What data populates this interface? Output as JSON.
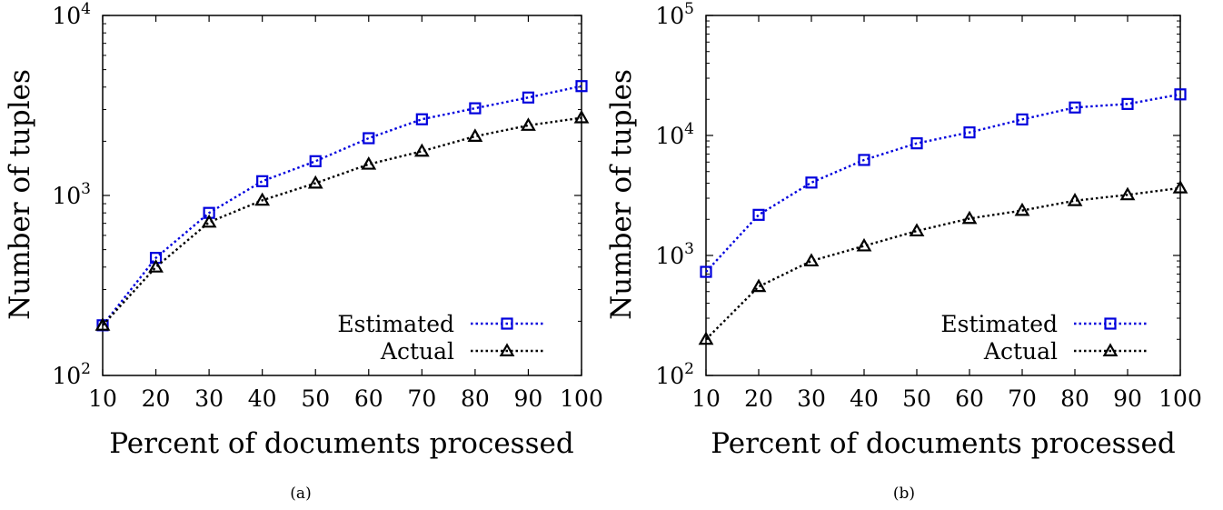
{
  "chart_data": [
    {
      "type": "line",
      "panel_label": "(a)",
      "xlabel": "Percent of documents processed",
      "ylabel": "Number of tuples",
      "x": [
        10,
        20,
        30,
        40,
        50,
        60,
        70,
        80,
        90,
        100
      ],
      "xticks": [
        "10",
        "20",
        "30",
        "40",
        "50",
        "60",
        "70",
        "80",
        "90",
        "100"
      ],
      "xlim": [
        10,
        100
      ],
      "yscale": "log",
      "ylim": [
        100,
        10000
      ],
      "yticks": [
        {
          "value": 100,
          "base": "10",
          "exp": "2"
        },
        {
          "value": 1000,
          "base": "10",
          "exp": "3"
        },
        {
          "value": 10000,
          "base": "10",
          "exp": "4"
        }
      ],
      "grid": false,
      "legend_position": "bottom-right",
      "series": [
        {
          "name": "Estimated",
          "color": "#0000dd",
          "marker": "square",
          "line_style": "dotted",
          "values": [
            190,
            450,
            800,
            1200,
            1550,
            2080,
            2650,
            3050,
            3500,
            4050
          ]
        },
        {
          "name": "Actual",
          "color": "#000000",
          "marker": "triangle",
          "line_style": "dotted",
          "values": [
            190,
            400,
            710,
            940,
            1170,
            1490,
            1760,
            2130,
            2450,
            2700
          ]
        }
      ]
    },
    {
      "type": "line",
      "panel_label": "(b)",
      "xlabel": "Percent of documents processed",
      "ylabel": "Number of tuples",
      "x": [
        10,
        20,
        30,
        40,
        50,
        60,
        70,
        80,
        90,
        100
      ],
      "xticks": [
        "10",
        "20",
        "30",
        "40",
        "50",
        "60",
        "70",
        "80",
        "90",
        "100"
      ],
      "xlim": [
        10,
        100
      ],
      "yscale": "log",
      "ylim": [
        100,
        100000
      ],
      "yticks": [
        {
          "value": 100,
          "base": "10",
          "exp": "2"
        },
        {
          "value": 1000,
          "base": "10",
          "exp": "3"
        },
        {
          "value": 10000,
          "base": "10",
          "exp": "4"
        },
        {
          "value": 100000,
          "base": "10",
          "exp": "5"
        }
      ],
      "grid": false,
      "legend_position": "bottom-right",
      "series": [
        {
          "name": "Estimated",
          "color": "#0000dd",
          "marker": "square",
          "line_style": "dotted",
          "values": [
            730,
            2180,
            4050,
            6250,
            8600,
            10600,
            13600,
            17100,
            18300,
            22000
          ]
        },
        {
          "name": "Actual",
          "color": "#000000",
          "marker": "triangle",
          "line_style": "dotted",
          "values": [
            200,
            550,
            900,
            1200,
            1600,
            2030,
            2370,
            2860,
            3200,
            3650
          ]
        }
      ]
    }
  ]
}
